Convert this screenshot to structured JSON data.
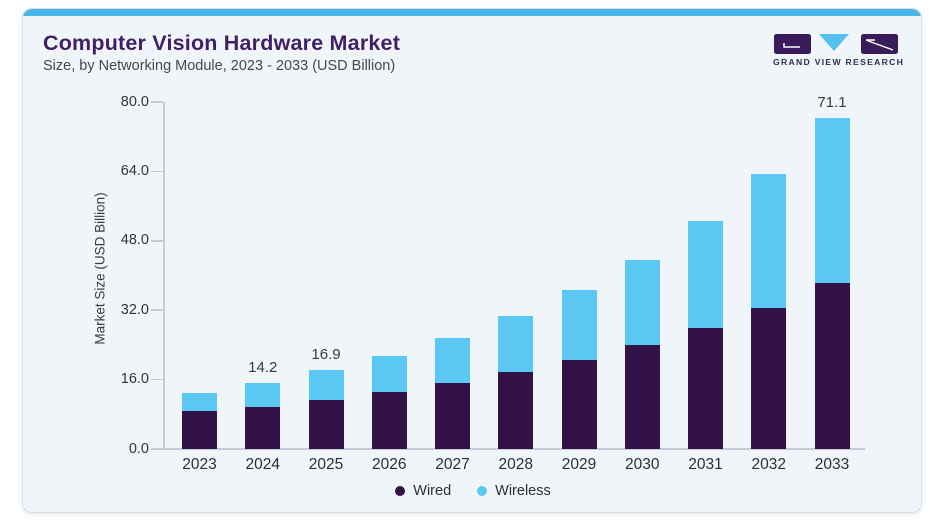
{
  "header": {
    "title": "Computer Vision Hardware Market",
    "subtitle": "Size, by Networking Module, 2023 - 2033 (USD Billion)"
  },
  "logo": {
    "text": "GRAND VIEW RESEARCH"
  },
  "colors": {
    "accent": "#49b6e8",
    "card_bg": "#f0f5f9",
    "card_border": "#d9dee4",
    "title": "#3f1f66",
    "subtitle": "#47474b",
    "axis_line": "#c6ccd5",
    "tick_text": "#33333c",
    "wired": "#321247",
    "wireless": "#5bc8f3",
    "logo_purple": "#3a1b5c",
    "logo_blue": "#55c0ed",
    "logo_text": "#2e2e50"
  },
  "chart_data": {
    "type": "bar",
    "stacked": true,
    "title": "Computer Vision Hardware Market",
    "subtitle": "Size, by Networking Module, 2023 - 2033 (USD Billion)",
    "xlabel": "",
    "ylabel": "Market Size (USD Billion)",
    "ylim": [
      0,
      80
    ],
    "yticks": [
      0,
      16,
      32,
      48,
      64,
      80
    ],
    "ytick_labels": [
      "0.0",
      "16.0",
      "32.0",
      "48.0",
      "64.0",
      "80.0"
    ],
    "categories": [
      "2023",
      "2024",
      "2025",
      "2026",
      "2027",
      "2028",
      "2029",
      "2030",
      "2031",
      "2032",
      "2033"
    ],
    "series": [
      {
        "name": "Wired",
        "color": "#321247",
        "values": [
          8.1,
          9.1,
          10.6,
          12.3,
          14.2,
          16.6,
          19.2,
          22.3,
          26.0,
          30.4,
          35.7
        ]
      },
      {
        "name": "Wireless",
        "color": "#5bc8f3",
        "values": [
          4.0,
          5.1,
          6.3,
          7.7,
          9.6,
          12.1,
          15.0,
          18.4,
          23.1,
          28.8,
          35.4
        ]
      }
    ],
    "totals": [
      12.1,
      14.2,
      16.9,
      20.0,
      23.8,
      28.7,
      34.2,
      40.7,
      49.1,
      59.2,
      71.1
    ],
    "bar_labels": [
      "",
      "14.2",
      "16.9",
      "",
      "",
      "",
      "",
      "",
      "",
      "",
      "71.1"
    ],
    "grid": false,
    "legend_position": "bottom"
  },
  "legend": {
    "items": [
      {
        "label": "Wired",
        "color": "#321247"
      },
      {
        "label": "Wireless",
        "color": "#5bc8f3"
      }
    ]
  }
}
